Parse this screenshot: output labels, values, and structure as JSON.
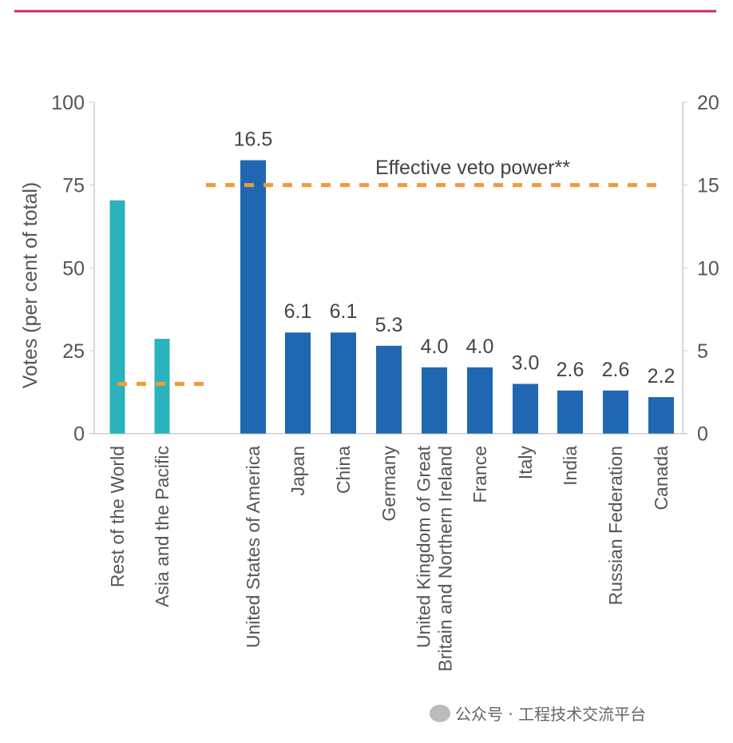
{
  "chart_data": {
    "type": "bar",
    "ylabel": "Votes (per cent of total)",
    "ylim_left": [
      0,
      100
    ],
    "ylim_right": [
      0,
      20
    ],
    "yticks_left": [
      0,
      25,
      50,
      75,
      100
    ],
    "yticks_right": [
      0,
      5,
      10,
      15,
      20
    ],
    "grid": false,
    "groups": [
      {
        "axis": "left",
        "color": "#2ab3bd",
        "categories": [
          "Rest of the World",
          "Asia and the Pacific"
        ],
        "values": [
          70.4,
          28.6
        ],
        "threshold": 15
      },
      {
        "axis": "right",
        "color": "#1f67b1",
        "categories": [
          "United States of America",
          "Japan",
          "China",
          "Germany",
          "United Kingdom of Great|Britain and Northern Ireland",
          "France",
          "Italy",
          "India",
          "Russian Federation",
          "Canada"
        ],
        "values": [
          16.5,
          6.1,
          6.1,
          5.3,
          4.0,
          4.0,
          3.0,
          2.6,
          2.6,
          2.2
        ],
        "data_labels": [
          "16.5",
          "6.1",
          "6.1",
          "5.3",
          "4.0",
          "4.0",
          "3.0",
          "2.6",
          "2.6",
          "2.2"
        ],
        "threshold": 15,
        "threshold_label": "Effective veto power**"
      }
    ],
    "threshold_color": "#f39a3c"
  },
  "header_rule_color": "#c8286e",
  "watermark": "公众号 · 工程技术交流平台"
}
